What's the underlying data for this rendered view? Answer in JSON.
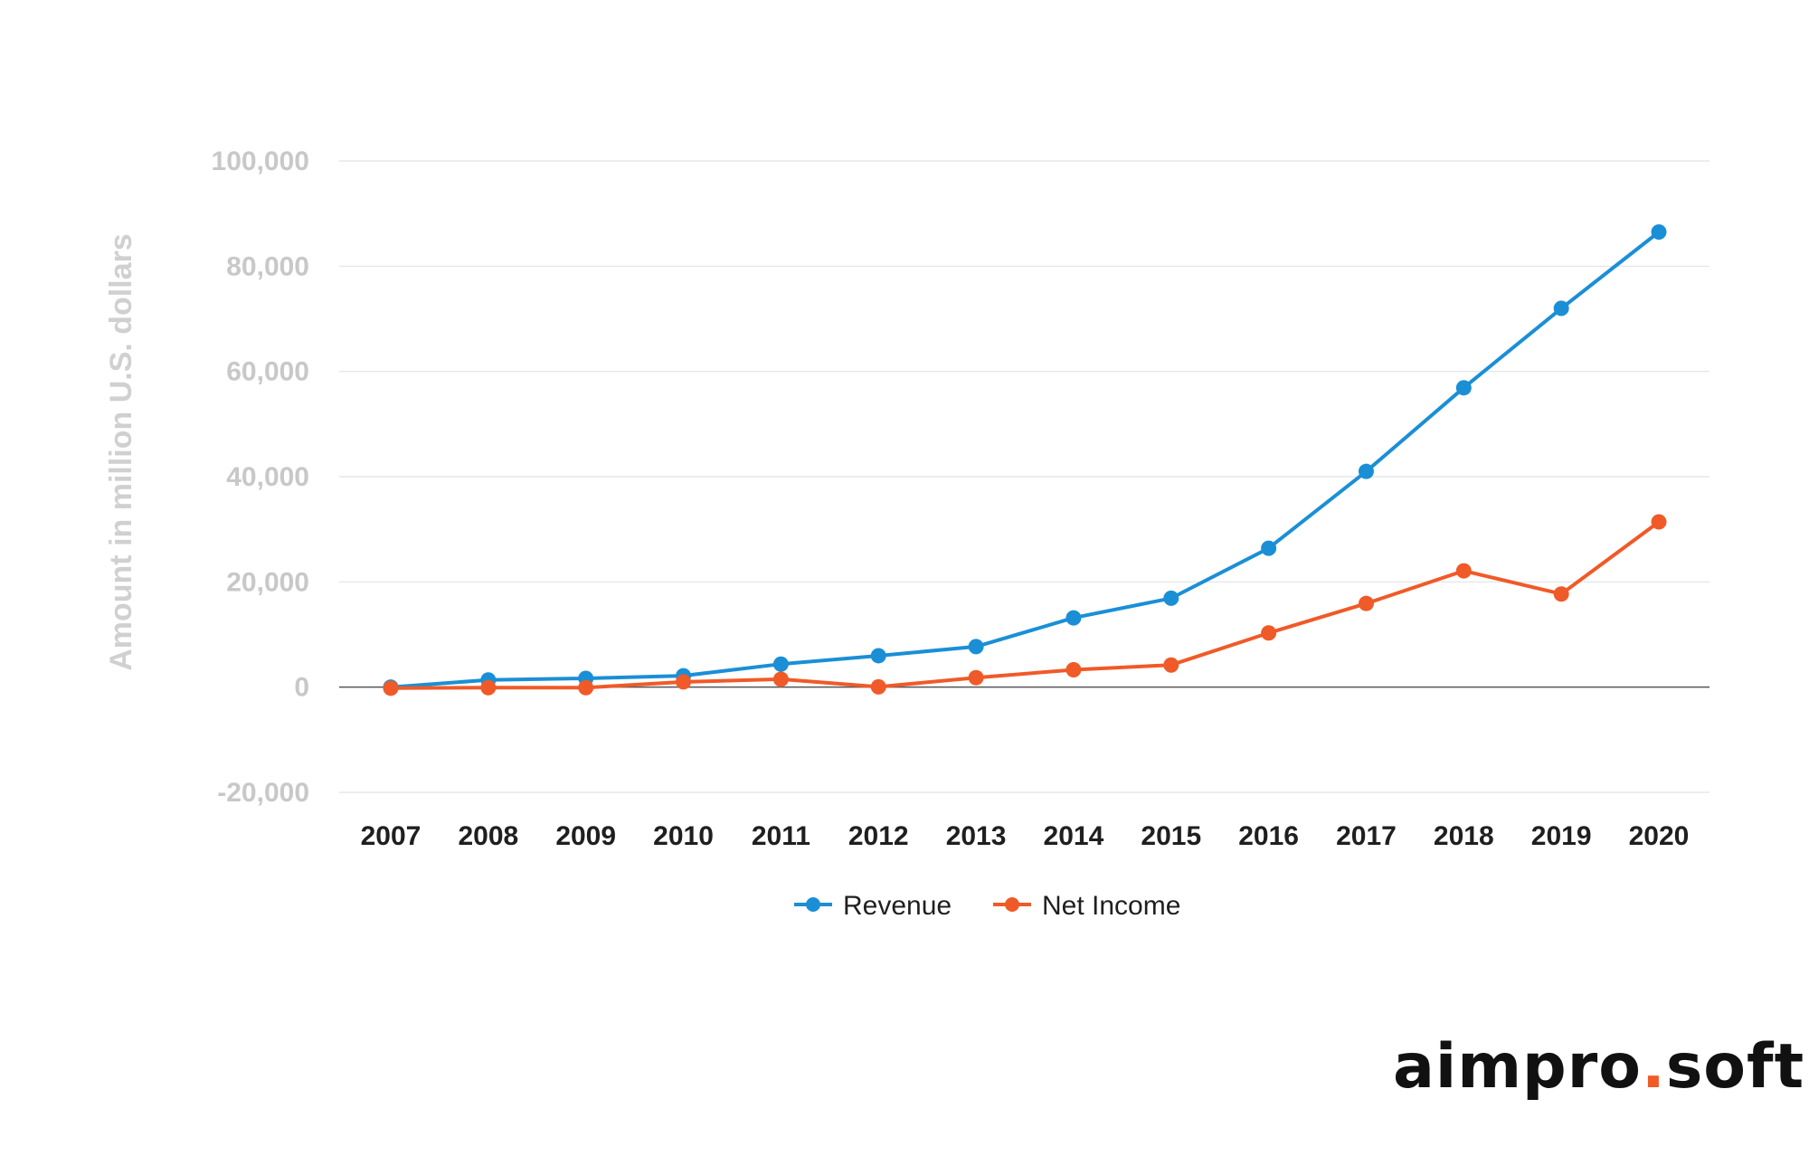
{
  "chart_data": {
    "type": "line",
    "ylabel": "Amount in million U.S. dollars",
    "xlabel": "",
    "categories": [
      "2007",
      "2008",
      "2009",
      "2010",
      "2011",
      "2012",
      "2013",
      "2014",
      "2015",
      "2016",
      "2017",
      "2018",
      "2019",
      "2020"
    ],
    "series": [
      {
        "name": "Revenue",
        "color": "#1a8fd6",
        "values": [
          0,
          1365,
          1670,
          2163,
          4375,
          5967,
          7700,
          13163,
          16900,
          26400,
          41000,
          56900,
          72000,
          86500
        ]
      },
      {
        "name": "Net Income",
        "color": "#f05a28",
        "values": [
          -200,
          -100,
          -100,
          1000,
          1500,
          50,
          1800,
          3300,
          4200,
          10300,
          15900,
          22100,
          17700,
          31400
        ]
      }
    ],
    "ylim": [
      -20000,
      100000
    ],
    "yticks": [
      "-20,000",
      "0",
      "20,000",
      "40,000",
      "60,000",
      "80,000",
      "100,000"
    ],
    "ytick_values": [
      -20000,
      0,
      20000,
      40000,
      60000,
      80000,
      100000
    ],
    "grid": true,
    "legend_position": "bottom"
  },
  "logo": {
    "part1": "aimpro",
    "dot": ".",
    "part2": "soft"
  }
}
